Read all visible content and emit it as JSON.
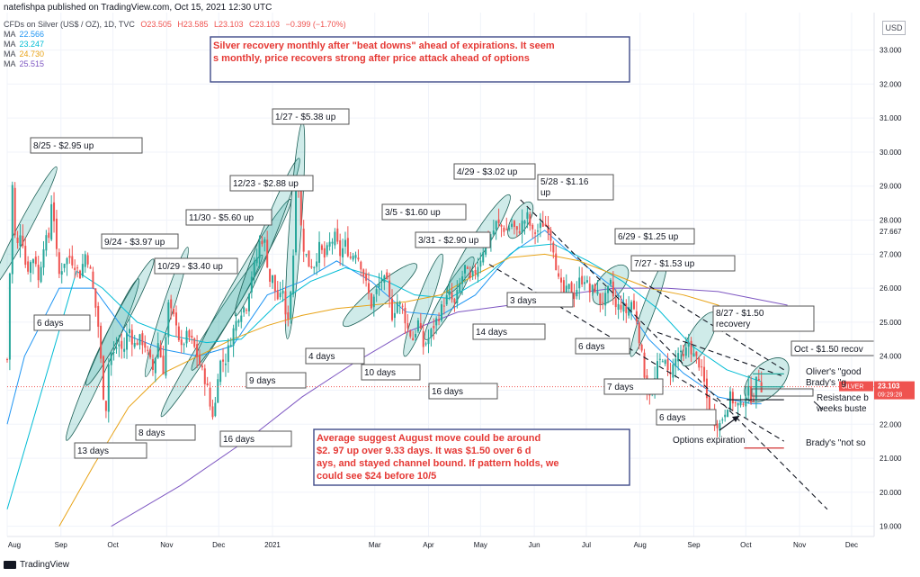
{
  "header": {
    "publisher_line": "natefishpa published on TradingView.com, Oct 15, 2021 12:30 UTC",
    "symbol_line": "CFDs on Silver (US$ / OZ), 1D, TVC",
    "ohlc": {
      "o": "O23.505",
      "h": "H23.585",
      "l": "L23.103",
      "c": "C23.103",
      "chg": "−0.399 (−1.70%)"
    },
    "ma_lines": [
      {
        "label": "MA",
        "value": "22.566"
      },
      {
        "label": "MA",
        "value": "23.247"
      },
      {
        "label": "MA",
        "value": "24.730"
      },
      {
        "label": "MA",
        "value": "25.515"
      }
    ],
    "currency_button": "USD"
  },
  "footer": {
    "brand": "TradingView"
  },
  "colors": {
    "up": "#26a69a",
    "down": "#ef5350",
    "ma1": "#2196f3",
    "ma2": "#00bcd4",
    "ma3": "#e8a317",
    "ma4": "#7e57c2",
    "annotation": "#e53935",
    "ellipse": "#26a69a",
    "box_border": "#555555",
    "resistance": "#26a69a",
    "brady_not_so": "#d32f2f"
  },
  "chart_data": {
    "type": "candlestick",
    "title": "CFDs on Silver (US$ / OZ), 1D, TVC",
    "y_axis": {
      "min": 18.7,
      "max": 34.1,
      "ticks": [
        "19.000",
        "20.000",
        "21.000",
        "22.000",
        "23.000",
        "24.000",
        "25.000",
        "26.000",
        "27.000",
        "28.000",
        "29.000",
        "30.000",
        "31.000",
        "32.000",
        "33.000"
      ],
      "extra_label": "27.667"
    },
    "x_axis": {
      "ticks": [
        "Aug",
        "Sep",
        "Oct",
        "Nov",
        "Dec",
        "2021",
        "Mar",
        "Apr",
        "May",
        "Jun",
        "Jul",
        "Aug",
        "Sep",
        "Oct",
        "Nov",
        "Dec"
      ],
      "tick_days": [
        0,
        31,
        61,
        92,
        122,
        153,
        212,
        243,
        273,
        304,
        334,
        365,
        396,
        426,
        457,
        487
      ],
      "day_range": [
        0,
        500
      ]
    },
    "close_path": [
      [
        0,
        23.9
      ],
      [
        3,
        29.0
      ],
      [
        5,
        27.0
      ],
      [
        8,
        27.8
      ],
      [
        11,
        26.5
      ],
      [
        14,
        26.8
      ],
      [
        16,
        27.0
      ],
      [
        18,
        26.2
      ],
      [
        21,
        27.3
      ],
      [
        24,
        27.5
      ],
      [
        26,
        28.9
      ],
      [
        28,
        27.2
      ],
      [
        30,
        26.4
      ],
      [
        33,
        26.8
      ],
      [
        36,
        26.9
      ],
      [
        39,
        26.7
      ],
      [
        42,
        26.4
      ],
      [
        45,
        27.0
      ],
      [
        47,
        26.8
      ],
      [
        50,
        25.8
      ],
      [
        53,
        24.7
      ],
      [
        55,
        23.0
      ],
      [
        57,
        22.5
      ],
      [
        59,
        24.2
      ],
      [
        61,
        24.0
      ],
      [
        64,
        24.4
      ],
      [
        67,
        24.1
      ],
      [
        70,
        24.9
      ],
      [
        73,
        24.3
      ],
      [
        76,
        24.5
      ],
      [
        79,
        24.4
      ],
      [
        82,
        23.9
      ],
      [
        84,
        23.6
      ],
      [
        87,
        24.4
      ],
      [
        90,
        23.6
      ],
      [
        93,
        25.5
      ],
      [
        95,
        25.2
      ],
      [
        98,
        25.0
      ],
      [
        100,
        24.1
      ],
      [
        103,
        24.6
      ],
      [
        106,
        24.5
      ],
      [
        109,
        24.1
      ],
      [
        112,
        23.6
      ],
      [
        115,
        23.2
      ],
      [
        118,
        22.2
      ],
      [
        120,
        22.6
      ],
      [
        122,
        23.8
      ],
      [
        126,
        23.9
      ],
      [
        130,
        24.7
      ],
      [
        134,
        25.3
      ],
      [
        138,
        25.5
      ],
      [
        141,
        26.4
      ],
      [
        144,
        26.9
      ],
      [
        146,
        27.5
      ],
      [
        149,
        27.3
      ],
      [
        151,
        26.2
      ],
      [
        153,
        26.3
      ],
      [
        155,
        25.8
      ],
      [
        157,
        25.6
      ],
      [
        159,
        26.0
      ],
      [
        161,
        24.8
      ],
      [
        163,
        25.6
      ],
      [
        165,
        27.0
      ],
      [
        167,
        30.0
      ],
      [
        169,
        28.0
      ],
      [
        171,
        27.2
      ],
      [
        174,
        26.7
      ],
      [
        177,
        26.7
      ],
      [
        180,
        27.2
      ],
      [
        183,
        26.9
      ],
      [
        186,
        27.3
      ],
      [
        189,
        27.5
      ],
      [
        192,
        27.0
      ],
      [
        195,
        27.3
      ],
      [
        198,
        26.9
      ],
      [
        201,
        27.1
      ],
      [
        204,
        26.7
      ],
      [
        207,
        26.1
      ],
      [
        210,
        25.5
      ],
      [
        213,
        25.9
      ],
      [
        216,
        26.3
      ],
      [
        219,
        26.1
      ],
      [
        222,
        25.2
      ],
      [
        225,
        25.6
      ],
      [
        228,
        25.4
      ],
      [
        231,
        24.8
      ],
      [
        234,
        24.5
      ],
      [
        237,
        25.0
      ],
      [
        240,
        24.3
      ],
      [
        243,
        24.5
      ],
      [
        246,
        24.9
      ],
      [
        249,
        25.2
      ],
      [
        252,
        25.6
      ],
      [
        255,
        25.8
      ],
      [
        258,
        25.5
      ],
      [
        261,
        26.1
      ],
      [
        264,
        26.6
      ],
      [
        267,
        26.2
      ],
      [
        270,
        26.5
      ],
      [
        273,
        26.9
      ],
      [
        276,
        27.4
      ],
      [
        279,
        27.5
      ],
      [
        282,
        27.9
      ],
      [
        285,
        27.8
      ],
      [
        288,
        27.7
      ],
      [
        291,
        27.9
      ],
      [
        294,
        27.6
      ],
      [
        297,
        27.9
      ],
      [
        300,
        28.1
      ],
      [
        303,
        27.6
      ],
      [
        306,
        27.7
      ],
      [
        309,
        27.9
      ],
      [
        312,
        27.8
      ],
      [
        315,
        27.2
      ],
      [
        318,
        26.2
      ],
      [
        321,
        25.8
      ],
      [
        324,
        26.0
      ],
      [
        327,
        25.8
      ],
      [
        330,
        26.2
      ],
      [
        333,
        26.3
      ],
      [
        336,
        25.9
      ],
      [
        339,
        26.0
      ],
      [
        342,
        25.6
      ],
      [
        345,
        25.7
      ],
      [
        348,
        26.1
      ],
      [
        351,
        25.4
      ],
      [
        354,
        25.5
      ],
      [
        357,
        25.3
      ],
      [
        360,
        25.6
      ],
      [
        363,
        25.1
      ],
      [
        366,
        24.0
      ],
      [
        369,
        23.0
      ],
      [
        372,
        22.9
      ],
      [
        375,
        23.7
      ],
      [
        378,
        24.0
      ],
      [
        381,
        23.5
      ],
      [
        384,
        23.7
      ],
      [
        387,
        24.1
      ],
      [
        390,
        23.9
      ],
      [
        393,
        24.4
      ],
      [
        396,
        24.0
      ],
      [
        399,
        23.8
      ],
      [
        402,
        23.2
      ],
      [
        405,
        22.3
      ],
      [
        408,
        22.1
      ],
      [
        411,
        22.0
      ],
      [
        414,
        22.4
      ],
      [
        417,
        22.8
      ],
      [
        420,
        22.6
      ],
      [
        423,
        22.5
      ],
      [
        425,
        22.8
      ],
      [
        427,
        23.0
      ],
      [
        430,
        22.7
      ],
      [
        433,
        23.5
      ],
      [
        435,
        23.1
      ]
    ],
    "moving_averages": [
      {
        "name": "MA",
        "value": "22.566",
        "color": "#2196f3",
        "points": [
          [
            0,
            22.0
          ],
          [
            10,
            24.0
          ],
          [
            30,
            26.0
          ],
          [
            50,
            26.0
          ],
          [
            70,
            24.6
          ],
          [
            90,
            24.2
          ],
          [
            110,
            24.0
          ],
          [
            130,
            24.3
          ],
          [
            150,
            25.8
          ],
          [
            170,
            26.2
          ],
          [
            190,
            26.8
          ],
          [
            210,
            26.2
          ],
          [
            230,
            25.3
          ],
          [
            250,
            25.2
          ],
          [
            270,
            25.8
          ],
          [
            290,
            27.0
          ],
          [
            310,
            27.7
          ],
          [
            330,
            26.8
          ],
          [
            350,
            26.0
          ],
          [
            370,
            24.5
          ],
          [
            390,
            23.5
          ],
          [
            410,
            22.8
          ],
          [
            430,
            22.6
          ],
          [
            435,
            22.6
          ]
        ]
      },
      {
        "name": "MA",
        "value": "23.247",
        "color": "#00bcd4",
        "points": [
          [
            0,
            19.5
          ],
          [
            20,
            23.0
          ],
          [
            40,
            26.5
          ],
          [
            55,
            26.0
          ],
          [
            75,
            25.0
          ],
          [
            95,
            24.6
          ],
          [
            115,
            24.4
          ],
          [
            135,
            24.5
          ],
          [
            155,
            25.5
          ],
          [
            175,
            26.2
          ],
          [
            195,
            26.6
          ],
          [
            215,
            26.3
          ],
          [
            235,
            25.8
          ],
          [
            255,
            25.7
          ],
          [
            275,
            26.3
          ],
          [
            295,
            27.2
          ],
          [
            315,
            27.3
          ],
          [
            335,
            26.8
          ],
          [
            355,
            26.2
          ],
          [
            375,
            25.4
          ],
          [
            395,
            24.3
          ],
          [
            415,
            23.6
          ],
          [
            435,
            23.25
          ]
        ]
      },
      {
        "name": "MA",
        "value": "24.730",
        "color": "#e8a317",
        "points": [
          [
            30,
            19.0
          ],
          [
            50,
            20.8
          ],
          [
            70,
            22.5
          ],
          [
            90,
            23.5
          ],
          [
            110,
            24.0
          ],
          [
            130,
            24.5
          ],
          [
            150,
            24.9
          ],
          [
            170,
            25.2
          ],
          [
            190,
            25.4
          ],
          [
            210,
            25.5
          ],
          [
            230,
            25.6
          ],
          [
            250,
            25.8
          ],
          [
            270,
            26.4
          ],
          [
            290,
            26.9
          ],
          [
            310,
            27.0
          ],
          [
            330,
            26.8
          ],
          [
            350,
            26.4
          ],
          [
            370,
            26.0
          ],
          [
            390,
            25.8
          ],
          [
            410,
            25.5
          ],
          [
            430,
            24.9
          ],
          [
            440,
            24.73
          ]
        ]
      },
      {
        "name": "MA",
        "value": "25.515",
        "color": "#7e57c2",
        "points": [
          [
            60,
            19.0
          ],
          [
            100,
            20.2
          ],
          [
            140,
            21.6
          ],
          [
            170,
            22.8
          ],
          [
            200,
            23.8
          ],
          [
            230,
            24.7
          ],
          [
            260,
            25.3
          ],
          [
            290,
            25.5
          ],
          [
            320,
            25.8
          ],
          [
            350,
            26.0
          ],
          [
            380,
            26.0
          ],
          [
            410,
            25.9
          ],
          [
            430,
            25.7
          ],
          [
            450,
            25.5
          ]
        ]
      }
    ],
    "last_price": {
      "value": "23.103",
      "label": "SILVER",
      "timer": "09:29:28"
    },
    "annotations": {
      "title_box": "Silver recovery monthly after \"beat downs\" ahead of expirations.  It seems monthly, price recovers strong after price attack ahead of options",
      "summary_box": "Average suggest August move could be around $2. 97 up over 9.33 days.  It was $1.50 over 6 days, and stayed channel bound.  If pattern holds, we could see $24 before 10/5",
      "moves": [
        "8/25 - $2.95 up",
        "9/24 - $3.97 up",
        "10/29 - $3.40 up",
        "11/30 - $5.60 up",
        "12/23 - $2.88 up",
        "1/27 - $5.38 up",
        "3/5 - $1.60 up",
        "3/31 - $2.90 up",
        "4/29 - $3.02 up",
        "5/28 - $1.16 up",
        "6/29 - $1.25 up",
        "7/27 - $1.53 up",
        "8/27 - $1.50 recovery",
        "Oct - $1.50 recov"
      ],
      "days": [
        "6 days",
        "13 days",
        "8 days",
        "16 days",
        "9 days",
        "4 days",
        "10 days",
        "16 days",
        "14 days",
        "3 days",
        "6 days",
        "7 days",
        "6 days"
      ],
      "right_labels": [
        "Oliver's \"good",
        "Brady's \"g",
        "Resistance b",
        "weeks buste",
        "Brady's \"not so"
      ],
      "options_label": "Options expiration"
    }
  }
}
